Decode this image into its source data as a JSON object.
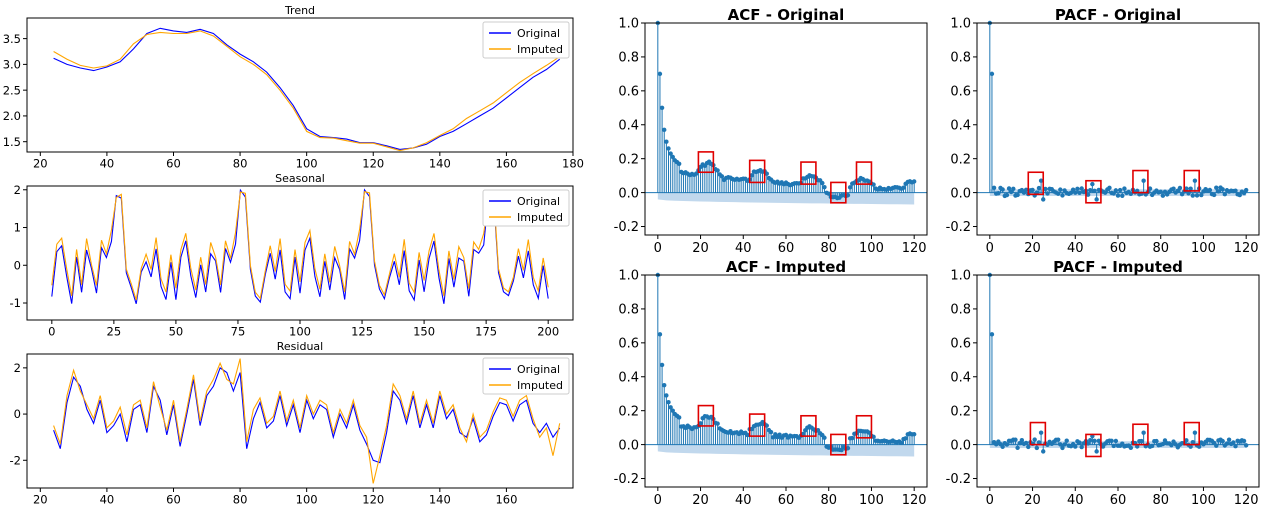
{
  "chart_data": [
    {
      "id": "trend",
      "type": "line",
      "title": "Trend",
      "xlim": [
        16,
        180
      ],
      "ylim": [
        1.3,
        3.9
      ],
      "xticks": [
        20,
        40,
        60,
        80,
        100,
        120,
        140,
        160,
        180
      ],
      "yticks": [
        1.5,
        2.0,
        2.5,
        3.0,
        3.5
      ],
      "ytick_format": "fixed1",
      "legend": "top-right",
      "series": [
        {
          "name": "Original",
          "color": "#0000ff",
          "x": [
            24,
            28,
            32,
            36,
            40,
            44,
            48,
            52,
            56,
            60,
            64,
            68,
            72,
            76,
            80,
            84,
            88,
            92,
            96,
            100,
            104,
            108,
            112,
            116,
            120,
            124,
            128,
            132,
            136,
            140,
            144,
            148,
            152,
            156,
            160,
            164,
            168,
            172,
            176
          ],
          "y": [
            3.12,
            3.0,
            2.93,
            2.88,
            2.95,
            3.05,
            3.3,
            3.6,
            3.7,
            3.65,
            3.62,
            3.68,
            3.6,
            3.38,
            3.2,
            3.05,
            2.85,
            2.55,
            2.2,
            1.75,
            1.6,
            1.58,
            1.55,
            1.48,
            1.48,
            1.42,
            1.35,
            1.38,
            1.45,
            1.6,
            1.7,
            1.85,
            2.0,
            2.15,
            2.35,
            2.55,
            2.75,
            2.9,
            3.1
          ]
        },
        {
          "name": "Imputed",
          "color": "#ffa500",
          "x": [
            24,
            28,
            32,
            36,
            40,
            44,
            48,
            52,
            56,
            60,
            64,
            68,
            72,
            76,
            80,
            84,
            88,
            92,
            96,
            100,
            104,
            108,
            112,
            116,
            120,
            124,
            128,
            132,
            136,
            140,
            144,
            148,
            152,
            156,
            160,
            164,
            168,
            172,
            176
          ],
          "y": [
            3.25,
            3.1,
            2.98,
            2.93,
            2.97,
            3.1,
            3.4,
            3.58,
            3.62,
            3.6,
            3.6,
            3.65,
            3.55,
            3.35,
            3.15,
            3.0,
            2.8,
            2.5,
            2.15,
            1.7,
            1.58,
            1.57,
            1.52,
            1.47,
            1.47,
            1.4,
            1.33,
            1.38,
            1.48,
            1.62,
            1.75,
            1.95,
            2.1,
            2.25,
            2.45,
            2.65,
            2.82,
            2.98,
            3.15
          ]
        }
      ]
    },
    {
      "id": "seasonal",
      "type": "line",
      "title": "Seasonal",
      "xlim": [
        -10,
        210
      ],
      "ylim": [
        -1.45,
        2.1
      ],
      "xticks": [
        0,
        25,
        50,
        75,
        100,
        125,
        150,
        175,
        200
      ],
      "yticks": [
        -1,
        0,
        1,
        2
      ],
      "ytick_format": "int",
      "legend": "top-right",
      "series": [
        {
          "name": "Original",
          "color": "#0000ff",
          "x": [
            0,
            2,
            4,
            6,
            8,
            10,
            12,
            14,
            16,
            18,
            20,
            22,
            24,
            26,
            28,
            30,
            32,
            34,
            36,
            38,
            40,
            42,
            44,
            46,
            48
          ],
          "y": [
            -0.8,
            0.3,
            0.6,
            -0.4,
            -0.9,
            0.1,
            -0.6,
            0.3,
            0.0,
            -0.8,
            0.5,
            0.2,
            0.6,
            1.9,
            1.7,
            -0.1,
            -0.7,
            -0.9,
            -0.3,
            0.2,
            -0.4,
            0.5,
            -0.6,
            -0.9,
            0.1
          ]
        },
        {
          "name": "Imputed",
          "color": "#ffa500",
          "x": [
            0,
            2,
            4,
            6,
            8,
            10,
            12,
            14,
            16,
            18,
            20,
            22,
            24,
            26,
            28,
            30,
            32,
            34,
            36,
            38,
            40,
            42,
            44,
            46,
            48
          ],
          "y": [
            -0.5,
            0.5,
            0.8,
            -0.2,
            -0.7,
            0.3,
            -0.4,
            0.6,
            0.1,
            -0.6,
            0.7,
            0.3,
            0.9,
            1.85,
            1.8,
            0.0,
            -0.6,
            -0.8,
            -0.2,
            0.4,
            -0.2,
            0.8,
            -0.4,
            -0.7,
            0.3
          ]
        }
      ],
      "period": 50,
      "x_end": 200
    },
    {
      "id": "residual",
      "type": "line",
      "title": "Residual",
      "xlim": [
        16,
        180
      ],
      "ylim": [
        -3.2,
        2.6
      ],
      "xticks": [
        20,
        40,
        60,
        80,
        100,
        120,
        140,
        160
      ],
      "yticks": [
        -2,
        0,
        2
      ],
      "ytick_format": "int",
      "legend": "top-right",
      "series": [
        {
          "name": "Original",
          "color": "#0000ff",
          "x": [
            24,
            26,
            28,
            30,
            32,
            34,
            36,
            38,
            40,
            42,
            44,
            46,
            48,
            50,
            52,
            54,
            56,
            58,
            60,
            62,
            64,
            66,
            68,
            70,
            72,
            74,
            76,
            78,
            80,
            82,
            84,
            86,
            88,
            90,
            92,
            94,
            96,
            98,
            100,
            102,
            104,
            106,
            108,
            110,
            112,
            114,
            116,
            118,
            120,
            122,
            124,
            126,
            128,
            130,
            132,
            134,
            136,
            138,
            140,
            142,
            144,
            146,
            148,
            150,
            152,
            154,
            156,
            158,
            160,
            162,
            164,
            166,
            168,
            170,
            172,
            174,
            176
          ],
          "y": [
            -0.7,
            -1.5,
            0.5,
            1.6,
            1.2,
            0.2,
            -0.4,
            0.6,
            -0.8,
            -0.5,
            0.0,
            -1.2,
            0.2,
            0.4,
            -0.8,
            1.2,
            0.6,
            -0.9,
            0.4,
            -1.4,
            0.0,
            1.5,
            -0.5,
            0.8,
            1.2,
            2.0,
            1.8,
            1.0,
            1.8,
            -1.5,
            -0.2,
            0.5,
            -0.6,
            -0.3,
            0.8,
            -0.5,
            0.4,
            -0.8,
            0.6,
            -0.2,
            0.4,
            0.2,
            -1.0,
            0.0,
            -0.6,
            0.4,
            -0.7,
            -1.3,
            -2.0,
            -2.1,
            -0.8,
            1.0,
            0.6,
            -0.4,
            0.8,
            -0.6,
            0.4,
            -0.6,
            0.8,
            -0.2,
            0.2,
            -0.8,
            -1.0,
            -0.2,
            -1.2,
            -0.9,
            -0.1,
            0.5,
            0.4,
            -0.3,
            0.4,
            0.6,
            -0.4,
            -0.8,
            -0.4,
            -1.0,
            -0.6
          ]
        },
        {
          "name": "Imputed",
          "color": "#ffa500",
          "x": [
            24,
            26,
            28,
            30,
            32,
            34,
            36,
            38,
            40,
            42,
            44,
            46,
            48,
            50,
            52,
            54,
            56,
            58,
            60,
            62,
            64,
            66,
            68,
            70,
            72,
            74,
            76,
            78,
            80,
            82,
            84,
            86,
            88,
            90,
            92,
            94,
            96,
            98,
            100,
            102,
            104,
            106,
            108,
            110,
            112,
            114,
            116,
            118,
            120,
            122,
            124,
            126,
            128,
            130,
            132,
            134,
            136,
            138,
            140,
            142,
            144,
            146,
            148,
            150,
            152,
            154,
            156,
            158,
            160,
            162,
            164,
            166,
            168,
            170,
            172,
            174,
            176
          ],
          "y": [
            -0.5,
            -1.3,
            0.8,
            1.9,
            1.0,
            0.4,
            -0.2,
            0.8,
            -0.6,
            -0.3,
            0.3,
            -0.9,
            0.4,
            0.6,
            -0.6,
            1.4,
            0.3,
            -0.7,
            0.6,
            -1.2,
            0.2,
            1.7,
            -0.3,
            1.0,
            1.5,
            2.2,
            1.5,
            1.3,
            2.4,
            -1.2,
            0.2,
            0.7,
            -0.4,
            -0.1,
            1.0,
            -0.3,
            0.6,
            -0.6,
            0.8,
            0.0,
            0.6,
            0.4,
            -0.8,
            0.2,
            -0.4,
            0.6,
            -0.5,
            -1.0,
            -3.0,
            -1.8,
            -0.5,
            1.3,
            0.8,
            -0.2,
            1.0,
            -0.4,
            0.6,
            -0.4,
            1.0,
            0.0,
            0.4,
            -0.6,
            -1.2,
            -0.0,
            -1.0,
            -0.7,
            0.1,
            0.7,
            0.6,
            -0.1,
            0.6,
            0.8,
            -0.2,
            -1.0,
            -0.6,
            -1.8,
            -0.4
          ]
        }
      ]
    },
    {
      "id": "acf-original",
      "type": "stem",
      "title": "ACF - Original",
      "xlim": [
        -6,
        126
      ],
      "ylim": [
        -0.25,
        1.0
      ],
      "xticks": [
        0,
        20,
        40,
        60,
        80,
        100,
        120
      ],
      "yticks": [
        -0.2,
        0.0,
        0.2,
        0.4,
        0.6,
        0.8,
        1.0
      ],
      "ytick_format": "fixed1",
      "stem_color": "#1f77b4",
      "band_color": "#a6c8e6",
      "band_upper": 0.0,
      "band_lower_start": -0.04,
      "band_lower_end": -0.07,
      "highlight_color": "#e00000",
      "highlights": [
        {
          "x0": 19,
          "x1": 26,
          "y0": 0.12,
          "y1": 0.24
        },
        {
          "x0": 43,
          "x1": 50,
          "y0": 0.06,
          "y1": 0.19
        },
        {
          "x0": 67,
          "x1": 74,
          "y0": 0.05,
          "y1": 0.18
        },
        {
          "x0": 81,
          "x1": 88,
          "y0": -0.06,
          "y1": 0.06
        },
        {
          "x0": 93,
          "x1": 100,
          "y0": 0.05,
          "y1": 0.18
        }
      ],
      "values_1": [
        1.0,
        0.7,
        0.5,
        0.37,
        0.3,
        0.26,
        0.23,
        0.21,
        0.19,
        0.18,
        0.17
      ],
      "base_level": 0.12,
      "curve": "acf"
    },
    {
      "id": "pacf-original",
      "type": "stem",
      "title": "PACF - Original",
      "xlim": [
        -6,
        126
      ],
      "ylim": [
        -0.25,
        1.0
      ],
      "xticks": [
        0,
        20,
        40,
        60,
        80,
        100,
        120
      ],
      "yticks": [
        -0.2,
        0.0,
        0.2,
        0.4,
        0.6,
        0.8,
        1.0
      ],
      "ytick_format": "fixed1",
      "stem_color": "#1f77b4",
      "band_color": "#a6c8e6",
      "band_upper": 0.02,
      "band_lower_start": -0.02,
      "band_lower_end": -0.02,
      "highlight_color": "#e00000",
      "highlights": [
        {
          "x0": 18,
          "x1": 25,
          "y0": -0.01,
          "y1": 0.12
        },
        {
          "x0": 45,
          "x1": 52,
          "y0": -0.06,
          "y1": 0.07
        },
        {
          "x0": 67,
          "x1": 74,
          "y0": 0.0,
          "y1": 0.13
        },
        {
          "x0": 91,
          "x1": 98,
          "y0": 0.01,
          "y1": 0.13
        }
      ],
      "curve": "pacf"
    },
    {
      "id": "acf-imputed",
      "type": "stem",
      "title": "ACF - Imputed",
      "xlim": [
        -6,
        126
      ],
      "ylim": [
        -0.25,
        1.0
      ],
      "xticks": [
        0,
        20,
        40,
        60,
        80,
        100,
        120
      ],
      "yticks": [
        -0.2,
        0.0,
        0.2,
        0.4,
        0.6,
        0.8,
        1.0
      ],
      "ytick_format": "fixed1",
      "stem_color": "#1f77b4",
      "band_color": "#a6c8e6",
      "band_upper": 0.0,
      "band_lower_start": -0.04,
      "band_lower_end": -0.07,
      "highlight_color": "#e00000",
      "highlights": [
        {
          "x0": 19,
          "x1": 26,
          "y0": 0.11,
          "y1": 0.23
        },
        {
          "x0": 43,
          "x1": 50,
          "y0": 0.05,
          "y1": 0.18
        },
        {
          "x0": 67,
          "x1": 74,
          "y0": 0.05,
          "y1": 0.17
        },
        {
          "x0": 81,
          "x1": 88,
          "y0": -0.06,
          "y1": 0.06
        },
        {
          "x0": 93,
          "x1": 100,
          "y0": 0.04,
          "y1": 0.17
        }
      ],
      "values_1": [
        1.0,
        0.65,
        0.47,
        0.35,
        0.29,
        0.25,
        0.22,
        0.2,
        0.18,
        0.17,
        0.16
      ],
      "base_level": 0.11,
      "curve": "acf"
    },
    {
      "id": "pacf-imputed",
      "type": "stem",
      "title": "PACF - Imputed",
      "xlim": [
        -6,
        126
      ],
      "ylim": [
        -0.25,
        1.0
      ],
      "xticks": [
        0,
        20,
        40,
        60,
        80,
        100,
        120
      ],
      "yticks": [
        -0.2,
        0.0,
        0.2,
        0.4,
        0.6,
        0.8,
        1.0
      ],
      "ytick_format": "fixed1",
      "stem_color": "#1f77b4",
      "band_color": "#a6c8e6",
      "band_upper": 0.02,
      "band_lower_start": -0.02,
      "band_lower_end": -0.02,
      "highlight_color": "#e00000",
      "highlights": [
        {
          "x0": 19,
          "x1": 26,
          "y0": 0.0,
          "y1": 0.13
        },
        {
          "x0": 45,
          "x1": 52,
          "y0": -0.07,
          "y1": 0.06
        },
        {
          "x0": 67,
          "x1": 74,
          "y0": 0.0,
          "y1": 0.12
        },
        {
          "x0": 91,
          "x1": 98,
          "y0": 0.0,
          "y1": 0.13
        }
      ],
      "curve": "pacf"
    }
  ]
}
